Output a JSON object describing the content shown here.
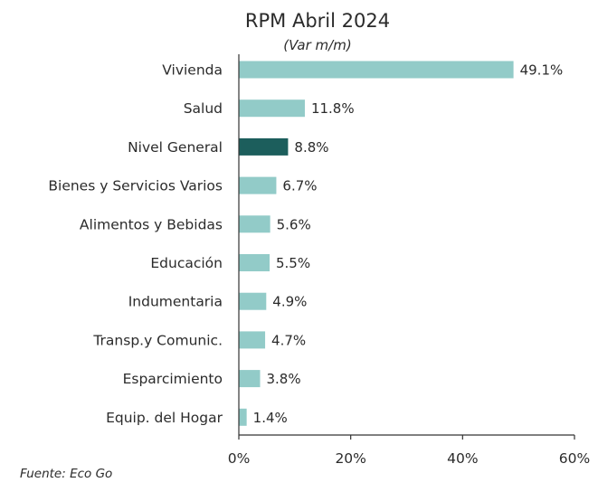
{
  "chart_data": {
    "type": "bar",
    "orientation": "horizontal",
    "title": "RPM Abril 2024",
    "subtitle": "(Var m/m)",
    "categories": [
      "Vivienda",
      "Salud",
      "Nivel General",
      "Bienes y Servicios Varios",
      "Alimentos y Bebidas",
      "Educación",
      "Indumentaria",
      "Transp.y Comunic.",
      "Esparcimiento",
      "Equip. del Hogar"
    ],
    "values": [
      49.1,
      11.8,
      8.8,
      6.7,
      5.6,
      5.5,
      4.9,
      4.7,
      3.8,
      1.4
    ],
    "value_labels": [
      "49.1%",
      "11.8%",
      "8.8%",
      "6.7%",
      "5.6%",
      "5.5%",
      "4.9%",
      "4.7%",
      "3.8%",
      "1.4%"
    ],
    "xlim": [
      0,
      60
    ],
    "x_ticks": [
      0,
      20,
      40,
      60
    ],
    "x_tick_labels": [
      "0%",
      "20%",
      "40%",
      "60%"
    ],
    "highlight_category": "Nivel General",
    "colors": {
      "bar": "#92cbc8",
      "highlight": "#1c5e5c",
      "axis": "#333333"
    },
    "grid": false,
    "legend": "none"
  },
  "source": "Fuente: Eco Go"
}
